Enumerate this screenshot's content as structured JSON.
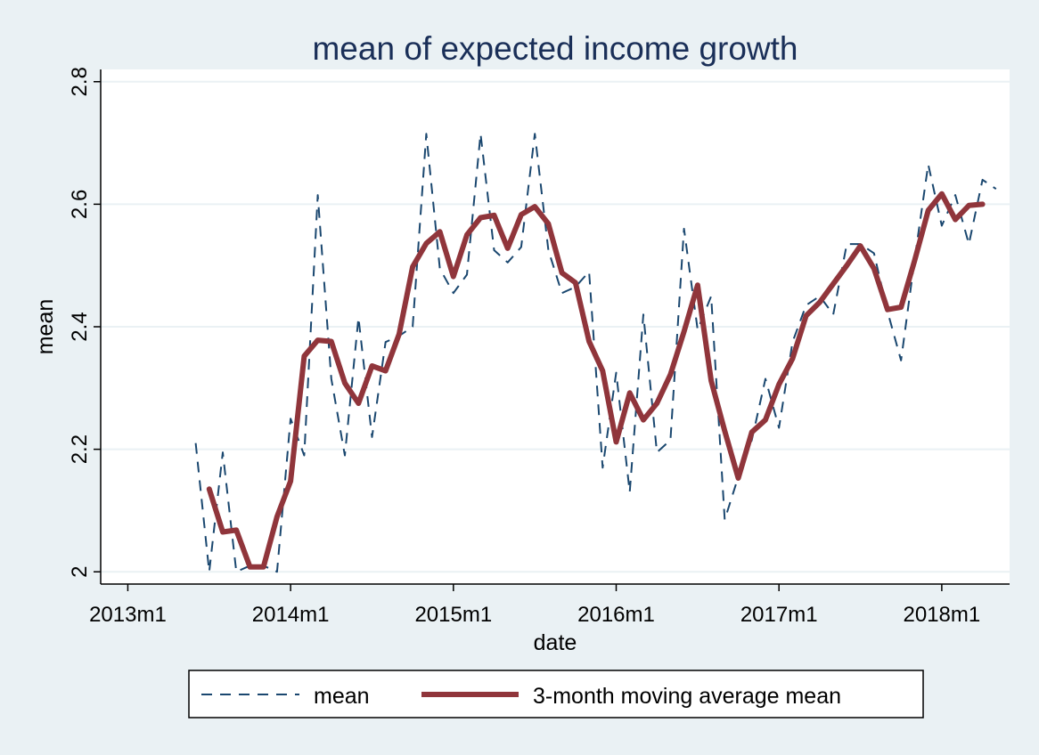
{
  "chart_data": {
    "type": "line",
    "title": "mean of expected income growth",
    "xlabel": "date",
    "ylabel": "mean",
    "xlim": [
      "2012m11",
      "2018m6"
    ],
    "ylim": [
      1.98,
      2.82
    ],
    "x_ticks": [
      "2013m1",
      "2014m1",
      "2015m1",
      "2016m1",
      "2017m1",
      "2018m1"
    ],
    "y_ticks": [
      "2",
      "2.2",
      "2.4",
      "2.6",
      "2.8"
    ],
    "grid": true,
    "legend_position": "bottom",
    "colors": {
      "mean": "#1a476f",
      "ma": "#90353b",
      "background": "#eaf1f4",
      "plot": "#ffffff",
      "grid": "#eaf1f4"
    },
    "series": [
      {
        "name": "mean",
        "style": "dashed",
        "x": [
          "2013m6",
          "2013m7",
          "2013m8",
          "2013m9",
          "2013m10",
          "2013m11",
          "2013m12",
          "2014m1",
          "2014m2",
          "2014m3",
          "2014m4",
          "2014m5",
          "2014m6",
          "2014m7",
          "2014m8",
          "2014m9",
          "2014m10",
          "2014m11",
          "2014m12",
          "2015m1",
          "2015m2",
          "2015m3",
          "2015m4",
          "2015m5",
          "2015m6",
          "2015m7",
          "2015m8",
          "2015m9",
          "2015m10",
          "2015m11",
          "2015m12",
          "2016m1",
          "2016m2",
          "2016m3",
          "2016m4",
          "2016m5",
          "2016m6",
          "2016m7",
          "2016m8",
          "2016m9",
          "2016m10",
          "2016m11",
          "2016m12",
          "2017m1",
          "2017m2",
          "2017m3",
          "2017m4",
          "2017m5",
          "2017m6",
          "2017m7",
          "2017m8",
          "2017m9",
          "2017m10",
          "2017m11",
          "2017m12",
          "2018m1",
          "2018m2",
          "2018m3",
          "2018m4",
          "2018m5"
        ],
        "values": [
          2.21,
          2.0,
          2.195,
          2.0,
          2.01,
          2.01,
          2.0,
          2.25,
          2.19,
          2.615,
          2.315,
          2.19,
          2.415,
          2.22,
          2.375,
          2.385,
          2.4,
          2.715,
          2.495,
          2.455,
          2.485,
          2.715,
          2.525,
          2.505,
          2.53,
          2.715,
          2.525,
          2.455,
          2.465,
          2.49,
          2.17,
          2.325,
          2.13,
          2.42,
          2.195,
          2.215,
          2.56,
          2.395,
          2.45,
          2.085,
          2.155,
          2.215,
          2.315,
          2.235,
          2.375,
          2.435,
          2.45,
          2.42,
          2.535,
          2.535,
          2.52,
          2.425,
          2.345,
          2.51,
          2.665,
          2.565,
          2.615,
          2.535,
          2.64,
          2.625
        ]
      },
      {
        "name": "3-month moving average mean",
        "style": "solid",
        "x": [
          "2013m7",
          "2013m8",
          "2013m9",
          "2013m10",
          "2013m11",
          "2013m12",
          "2014m1",
          "2014m2",
          "2014m3",
          "2014m4",
          "2014m5",
          "2014m6",
          "2014m7",
          "2014m8",
          "2014m9",
          "2014m10",
          "2014m11",
          "2014m12",
          "2015m1",
          "2015m2",
          "2015m3",
          "2015m4",
          "2015m5",
          "2015m6",
          "2015m7",
          "2015m8",
          "2015m9",
          "2015m10",
          "2015m11",
          "2015m12",
          "2016m1",
          "2016m2",
          "2016m3",
          "2016m4",
          "2016m5",
          "2016m6",
          "2016m7",
          "2016m8",
          "2016m9",
          "2016m10",
          "2016m11",
          "2016m12",
          "2017m1",
          "2017m2",
          "2017m3",
          "2017m4",
          "2017m5",
          "2017m6",
          "2017m7",
          "2017m8",
          "2017m9",
          "2017m10",
          "2017m11",
          "2017m12",
          "2018m1",
          "2018m2",
          "2018m3",
          "2018m4"
        ],
        "values": [
          2.135,
          2.065,
          2.068,
          2.008,
          2.008,
          2.09,
          2.148,
          2.352,
          2.378,
          2.376,
          2.308,
          2.275,
          2.336,
          2.328,
          2.388,
          2.498,
          2.536,
          2.555,
          2.482,
          2.55,
          2.578,
          2.582,
          2.528,
          2.583,
          2.596,
          2.568,
          2.488,
          2.472,
          2.376,
          2.328,
          2.212,
          2.292,
          2.248,
          2.275,
          2.322,
          2.392,
          2.468,
          2.312,
          2.23,
          2.153,
          2.228,
          2.248,
          2.306,
          2.348,
          2.418,
          2.44,
          2.47,
          2.5,
          2.532,
          2.495,
          2.428,
          2.432,
          2.508,
          2.59,
          2.617,
          2.575,
          2.598,
          2.6
        ]
      }
    ]
  }
}
